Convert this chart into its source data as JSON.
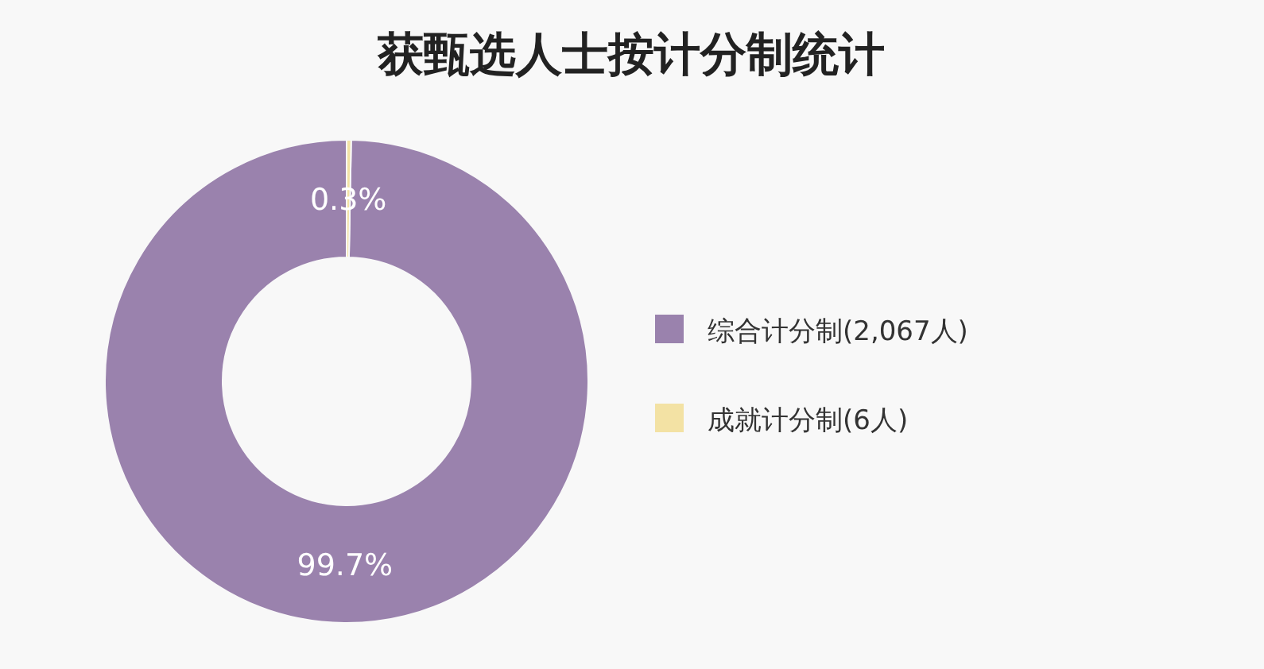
{
  "chart_data": {
    "type": "donut",
    "title": "获甄选人士按计分制统计",
    "categories": [
      "综合计分制(2,067人)",
      "成就计分制(6人)"
    ],
    "values": [
      99.7,
      0.3
    ],
    "colors": [
      "#9a82ad",
      "#f3e2a4"
    ],
    "value_labels": [
      "99.7%",
      "0.3%"
    ],
    "legend": "right"
  }
}
